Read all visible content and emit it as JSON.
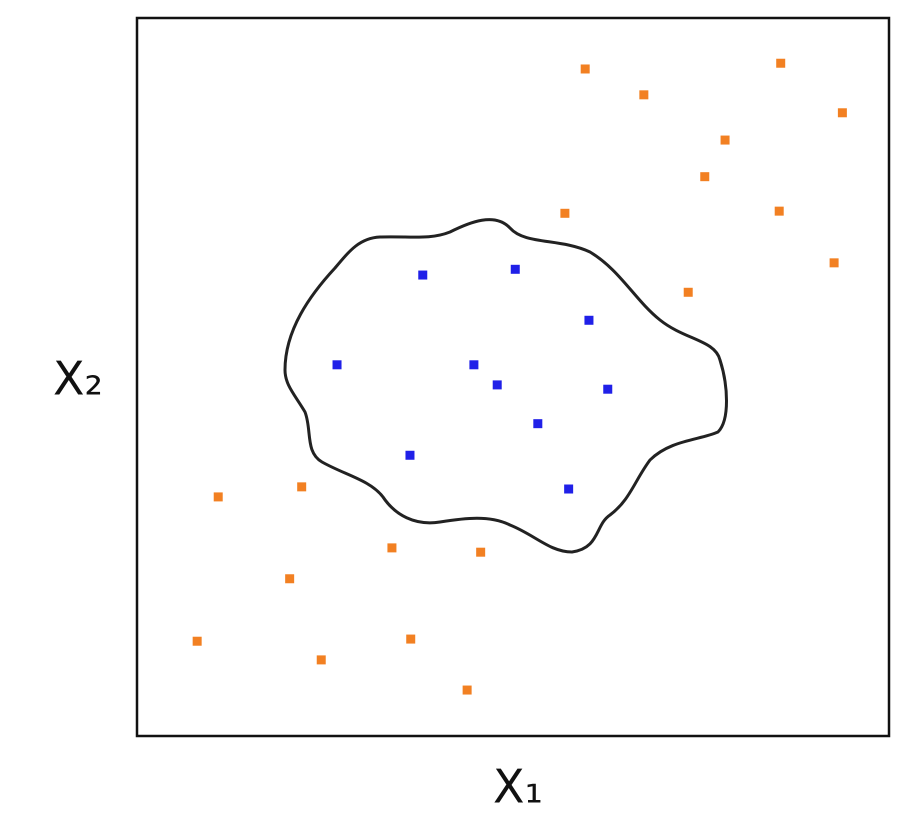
{
  "chart_data": {
    "type": "scatter",
    "x_label": "X₁",
    "y_label": "X₂",
    "xlim": [
      0,
      100
    ],
    "ylim": [
      0,
      100
    ],
    "series": [
      {
        "color": "#f28022",
        "x": [
          59.6,
          85.6,
          67.4,
          93.8,
          78.2,
          75.5,
          56.9,
          85.4,
          92.7,
          73.3,
          10.8,
          21.9,
          33.9,
          45.7,
          20.3,
          8.0,
          36.4,
          24.5,
          43.9
        ],
        "y": [
          92.9,
          93.7,
          89.3,
          86.8,
          83.0,
          77.9,
          72.8,
          73.1,
          65.9,
          61.8,
          33.3,
          34.7,
          26.2,
          25.6,
          21.9,
          13.2,
          13.5,
          10.6,
          6.4
        ]
      },
      {
        "color": "#2020e8",
        "x": [
          38.0,
          50.3,
          60.1,
          26.6,
          44.8,
          47.9,
          62.6,
          53.3,
          36.3,
          57.4
        ],
        "y": [
          64.2,
          65.0,
          57.9,
          51.7,
          51.7,
          48.9,
          48.3,
          43.5,
          39.1,
          34.4
        ]
      }
    ]
  }
}
